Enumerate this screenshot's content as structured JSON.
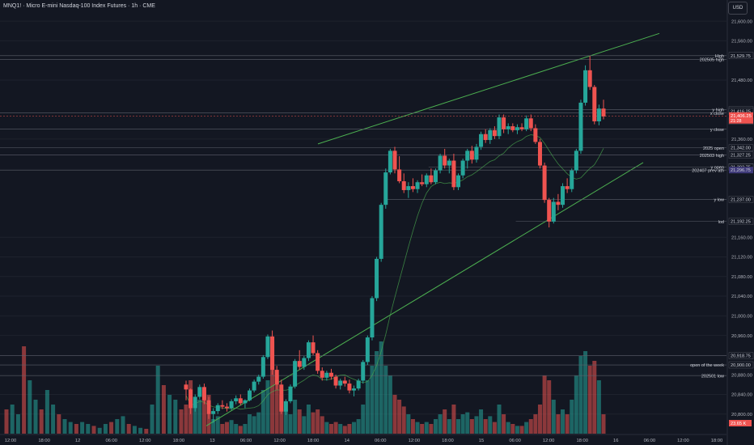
{
  "header": {
    "title": "MNQ1! · Micro E-mini Nasdaq-100 Index Futures · 1h · CME",
    "currency": "USD"
  },
  "colors": {
    "background": "#131722",
    "up": "#26a69a",
    "down": "#ef5350",
    "trend": "#4caf50",
    "level": "#5d606b",
    "price_tag": "#ef5350",
    "purple_tag": "#3f3a7a"
  },
  "chart_data": {
    "type": "candlestick",
    "timeframe": "1h",
    "price_axis": {
      "min": 20760,
      "max": 21620,
      "ticks": [
        "21,600.00",
        "21,560.00",
        "21,480.00",
        "21,360.00",
        "21,160.00",
        "21,120.00",
        "21,080.00",
        "21,040.00",
        "21,000.00",
        "20,960.00",
        "20,880.00",
        "20,840.00",
        "20,800.00"
      ]
    },
    "time_axis": {
      "ticks": [
        "12:00",
        "18:00",
        "12",
        "06:00",
        "12:00",
        "18:00",
        "13",
        "06:00",
        "12:00",
        "18:00",
        "14",
        "06:00",
        "12:00",
        "18:00",
        "15",
        "06:00",
        "12:00",
        "18:00",
        "16",
        "06:00",
        "12:00",
        "18:00"
      ]
    },
    "current_price": {
      "value": "21,406.25",
      "countdown": "21:28"
    },
    "price_labels": [
      {
        "price": 21529.75,
        "text": "21,529.75",
        "style": "boxed"
      },
      {
        "price": 21419.75,
        "text": "21,419.75",
        "style": "boxed"
      },
      {
        "price": 21416.25,
        "text": "21,416.25",
        "style": "boxed"
      },
      {
        "price": 21396.75,
        "text": "21,396.75",
        "style": "boxed"
      },
      {
        "price": 21342.0,
        "text": "21,342.00",
        "style": "boxed"
      },
      {
        "price": 21327.25,
        "text": "21,327.25",
        "style": "boxed"
      },
      {
        "price": 21303.25,
        "text": "21,303.25",
        "style": "boxed"
      },
      {
        "price": 21302.75,
        "text": "21,302.75",
        "style": "boxed"
      },
      {
        "price": 21296.75,
        "text": "21,296.75",
        "style": "purple"
      },
      {
        "price": 21237.0,
        "text": "21,237.00",
        "style": "boxed"
      },
      {
        "price": 21192.25,
        "text": "21,192.25",
        "style": "boxed"
      },
      {
        "price": 20918.75,
        "text": "20,918.75",
        "style": "boxed"
      },
      {
        "price": 20900.0,
        "text": "20,900.00",
        "style": "boxed"
      }
    ],
    "levels": [
      {
        "price": 21529.75,
        "label": "High",
        "x0": 0
      },
      {
        "price": 21522.0,
        "label": "202505 high",
        "x0": 0
      },
      {
        "price": 21419.75,
        "label": "y high",
        "x0": 0.59
      },
      {
        "price": 21413.0,
        "label": "x close",
        "x0": 0
      },
      {
        "price": 21380.0,
        "label": "y close",
        "x0": 0
      },
      {
        "price": 21342.0,
        "label": "2025 open",
        "x0": 0
      },
      {
        "price": 21327.25,
        "label": "202503 high",
        "x0": 0
      },
      {
        "price": 21303.25,
        "label": "y open",
        "x0": 0.59
      },
      {
        "price": 21296.75,
        "label": "202407 prev ath",
        "x0": 0
      },
      {
        "price": 21237.0,
        "label": "y low",
        "x0": 0.53
      },
      {
        "price": 21192.25,
        "label": "lod",
        "x0": 0.71
      },
      {
        "price": 20918.75,
        "label": "",
        "x0": 0
      },
      {
        "price": 20900.0,
        "label": "open of the week",
        "x0": 0
      },
      {
        "price": 20878.0,
        "label": "202501 low",
        "x0": 0
      }
    ],
    "volume_label": "23.65 K",
    "candles": [
      [
        20860,
        20868,
        20828,
        20850,
        0.3
      ],
      [
        20850,
        20852,
        20800,
        20812,
        0.55
      ],
      [
        20812,
        20840,
        20805,
        20835,
        0.3
      ],
      [
        20835,
        20860,
        20830,
        20855,
        0.35
      ],
      [
        20855,
        20862,
        20820,
        20828,
        0.45
      ],
      [
        20828,
        20835,
        20790,
        20800,
        0.4
      ],
      [
        20800,
        20812,
        20782,
        20806,
        0.15
      ],
      [
        20806,
        20822,
        20800,
        20818,
        0.18
      ],
      [
        20818,
        20828,
        20810,
        20815,
        0.1
      ],
      [
        20815,
        20822,
        20805,
        20812,
        0.12
      ],
      [
        20812,
        20830,
        20808,
        20826,
        0.14
      ],
      [
        20826,
        20838,
        20820,
        20832,
        0.1
      ],
      [
        20832,
        20840,
        20818,
        20822,
        0.08
      ],
      [
        20822,
        20830,
        20812,
        20828,
        0.1
      ],
      [
        20828,
        20852,
        20826,
        20848,
        0.2
      ],
      [
        20848,
        20870,
        20844,
        20866,
        0.18
      ],
      [
        20866,
        20880,
        20860,
        20876,
        0.22
      ],
      [
        20876,
        20920,
        20872,
        20916,
        0.45
      ],
      [
        20916,
        20962,
        20912,
        20958,
        0.55
      ],
      [
        20958,
        20970,
        20880,
        20890,
        0.95
      ],
      [
        20890,
        20898,
        20850,
        20860,
        0.6
      ],
      [
        20860,
        20870,
        20800,
        20805,
        0.4
      ],
      [
        20805,
        20830,
        20798,
        20826,
        0.25
      ],
      [
        20826,
        20860,
        20822,
        20856,
        0.2
      ],
      [
        20856,
        20912,
        20852,
        20908,
        0.35
      ],
      [
        20908,
        20930,
        20890,
        20896,
        0.25
      ],
      [
        20896,
        20918,
        20890,
        20914,
        0.18
      ],
      [
        20914,
        20950,
        20908,
        20946,
        0.3
      ],
      [
        20946,
        20960,
        20920,
        20924,
        0.22
      ],
      [
        20924,
        20930,
        20882,
        20888,
        0.25
      ],
      [
        20888,
        20895,
        20868,
        20874,
        0.18
      ],
      [
        20874,
        20888,
        20868,
        20884,
        0.12
      ],
      [
        20884,
        20892,
        20870,
        20876,
        0.1
      ],
      [
        20876,
        20880,
        20852,
        20858,
        0.12
      ],
      [
        20858,
        20872,
        20850,
        20868,
        0.1
      ],
      [
        20868,
        20876,
        20856,
        20862,
        0.08
      ],
      [
        20862,
        20870,
        20842,
        20848,
        0.1
      ],
      [
        20848,
        20858,
        20836,
        20852,
        0.12
      ],
      [
        20852,
        20872,
        20848,
        20868,
        0.15
      ],
      [
        20868,
        20910,
        20862,
        20906,
        0.3
      ],
      [
        20906,
        20960,
        20900,
        20956,
        0.55
      ],
      [
        20956,
        21040,
        20950,
        21036,
        0.7
      ],
      [
        21036,
        21120,
        21030,
        21116,
        0.85
      ],
      [
        21116,
        21230,
        21110,
        21226,
        0.95
      ],
      [
        21226,
        21300,
        21218,
        21292,
        0.7
      ],
      [
        21292,
        21340,
        21288,
        21336,
        0.6
      ],
      [
        21336,
        21344,
        21290,
        21298,
        0.4
      ],
      [
        21298,
        21325,
        21270,
        21274,
        0.35
      ],
      [
        21274,
        21290,
        21250,
        21256,
        0.28
      ],
      [
        21256,
        21272,
        21240,
        21264,
        0.2
      ],
      [
        21264,
        21280,
        21252,
        21258,
        0.15
      ],
      [
        21258,
        21276,
        21250,
        21272,
        0.12
      ],
      [
        21272,
        21288,
        21264,
        21268,
        0.1
      ],
      [
        21268,
        21290,
        21262,
        21286,
        0.12
      ],
      [
        21286,
        21300,
        21268,
        21272,
        0.1
      ],
      [
        21272,
        21300,
        21268,
        21296,
        0.15
      ],
      [
        21296,
        21330,
        21290,
        21326,
        0.2
      ],
      [
        21326,
        21340,
        21300,
        21306,
        0.25
      ],
      [
        21306,
        21320,
        21290,
        21316,
        0.15
      ],
      [
        21316,
        21330,
        21256,
        21262,
        0.3
      ],
      [
        21262,
        21290,
        21256,
        21286,
        0.15
      ],
      [
        21286,
        21320,
        21280,
        21316,
        0.2
      ],
      [
        21316,
        21340,
        21300,
        21336,
        0.22
      ],
      [
        21336,
        21346,
        21310,
        21318,
        0.15
      ],
      [
        21318,
        21350,
        21312,
        21344,
        0.18
      ],
      [
        21344,
        21375,
        21338,
        21370,
        0.25
      ],
      [
        21370,
        21380,
        21352,
        21358,
        0.15
      ],
      [
        21358,
        21382,
        21350,
        21378,
        0.18
      ],
      [
        21378,
        21386,
        21360,
        21366,
        0.12
      ],
      [
        21366,
        21410,
        21360,
        21404,
        0.3
      ],
      [
        21404,
        21410,
        21372,
        21380,
        0.2
      ],
      [
        21380,
        21392,
        21370,
        21386,
        0.12
      ],
      [
        21386,
        21392,
        21374,
        21378,
        0.1
      ],
      [
        21378,
        21390,
        21370,
        21384,
        0.08
      ],
      [
        21384,
        21392,
        21376,
        21380,
        0.08
      ],
      [
        21380,
        21408,
        21376,
        21402,
        0.12
      ],
      [
        21402,
        21410,
        21376,
        21382,
        0.15
      ],
      [
        21382,
        21390,
        21350,
        21354,
        0.2
      ],
      [
        21354,
        21360,
        21300,
        21306,
        0.3
      ],
      [
        21306,
        21312,
        21230,
        21236,
        0.6
      ],
      [
        21236,
        21240,
        21180,
        21192,
        0.55
      ],
      [
        21192,
        21240,
        21188,
        21232,
        0.35
      ],
      [
        21232,
        21248,
        21215,
        21226,
        0.2
      ],
      [
        21226,
        21270,
        21220,
        21264,
        0.25
      ],
      [
        21264,
        21280,
        21250,
        21258,
        0.2
      ],
      [
        21258,
        21300,
        21252,
        21296,
        0.35
      ],
      [
        21296,
        21340,
        21290,
        21336,
        0.6
      ],
      [
        21336,
        21440,
        21330,
        21434,
        0.8
      ],
      [
        21434,
        21510,
        21428,
        21500,
        0.85
      ],
      [
        21500,
        21529,
        21460,
        21466,
        0.7
      ],
      [
        21466,
        21470,
        21390,
        21396,
        0.75
      ],
      [
        21396,
        21430,
        21388,
        21422,
        0.55
      ],
      [
        21422,
        21440,
        21400,
        21406,
        0.2
      ]
    ]
  }
}
